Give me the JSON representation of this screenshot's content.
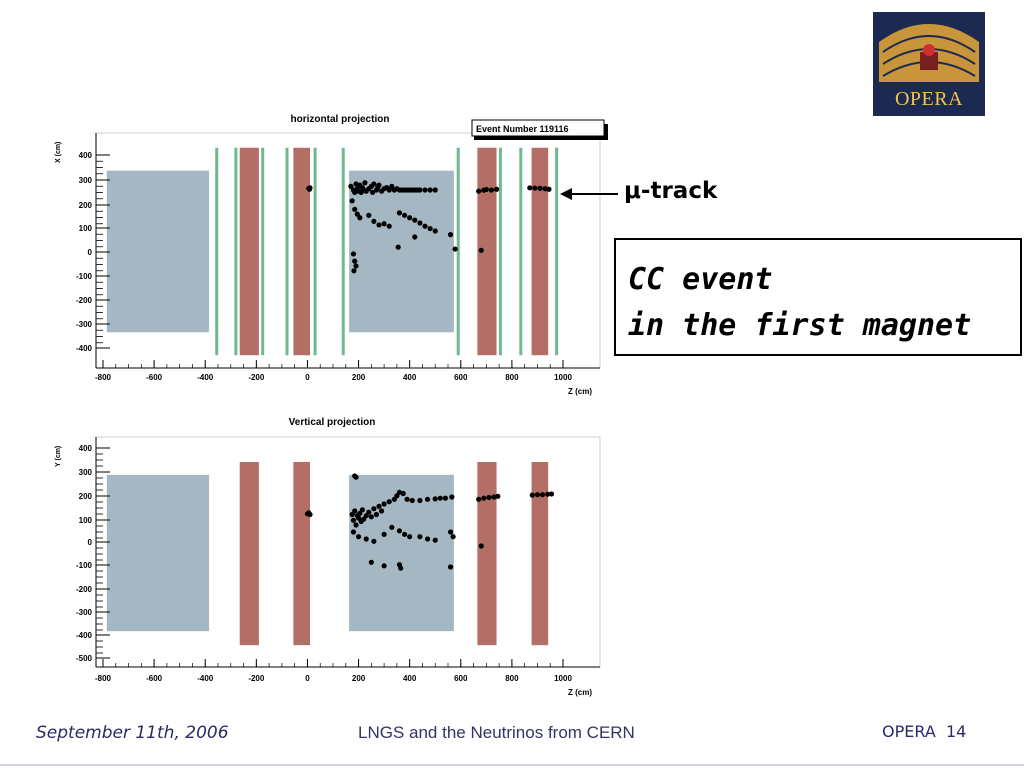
{
  "slide": {
    "logo": {
      "text": "OPERA",
      "icon": "opera-theatre-logo-icon",
      "colors": {
        "background": "#1c2a52",
        "gold": "#f2c24a"
      }
    },
    "mu_label": "μ-track",
    "cc_box": {
      "line1": "CC event",
      "line2": "in the first magnet"
    },
    "footer": {
      "date": "September 11th, 2006",
      "title": "LNGS and the Neutrinos from CERN",
      "org": "OPERA",
      "page": "14"
    }
  },
  "chart_data": [
    {
      "type": "scatter",
      "title": "horizontal projection",
      "annotation": "Event Number 119116",
      "xlabel": "Z (cm)",
      "ylabel": "X (cm)",
      "xlim": [
        -800,
        1080
      ],
      "ylim": [
        -450,
        450
      ],
      "x_ticks": [
        "-800",
        "-600",
        "-400",
        "-200",
        "0",
        "200",
        "400",
        "600",
        "800",
        "1000"
      ],
      "y_ticks": [
        "400",
        "300",
        "200",
        "100",
        "0",
        "-100",
        "-200",
        "-300",
        "-400"
      ],
      "colors": {
        "target": "#a5b7c3",
        "magnet": "#b36f65",
        "tracker": "#6fb98e"
      },
      "regions": [
        {
          "kind": "target",
          "z": [
            -785,
            -385
          ],
          "v": [
            -335,
            335
          ]
        },
        {
          "kind": "target",
          "z": [
            163,
            573
          ],
          "v": [
            -335,
            335
          ]
        },
        {
          "kind": "magnet",
          "z": [
            -265,
            -190
          ],
          "v": [
            -430,
            430
          ]
        },
        {
          "kind": "magnet",
          "z": [
            -55,
            10
          ],
          "v": [
            -430,
            430
          ]
        },
        {
          "kind": "magnet",
          "z": [
            665,
            740
          ],
          "v": [
            -430,
            430
          ]
        },
        {
          "kind": "magnet",
          "z": [
            877,
            942
          ],
          "v": [
            -430,
            430
          ]
        }
      ],
      "tracker_lines": [
        -355,
        -280,
        -175,
        -80,
        30,
        140,
        590,
        755,
        835,
        975
      ],
      "tracker_range": [
        -430,
        430
      ],
      "points": [
        [
          5,
          262
        ],
        [
          8,
          258
        ],
        [
          10,
          264
        ],
        [
          170,
          270
        ],
        [
          180,
          255
        ],
        [
          185,
          245
        ],
        [
          190,
          280
        ],
        [
          195,
          260
        ],
        [
          200,
          250
        ],
        [
          205,
          275
        ],
        [
          210,
          245
        ],
        [
          215,
          265
        ],
        [
          220,
          255
        ],
        [
          225,
          285
        ],
        [
          230,
          250
        ],
        [
          240,
          260
        ],
        [
          250,
          270
        ],
        [
          255,
          245
        ],
        [
          260,
          280
        ],
        [
          270,
          255
        ],
        [
          275,
          265
        ],
        [
          280,
          275
        ],
        [
          290,
          250
        ],
        [
          300,
          260
        ],
        [
          310,
          265
        ],
        [
          320,
          255
        ],
        [
          330,
          270
        ],
        [
          340,
          255
        ],
        [
          350,
          260
        ],
        [
          360,
          255
        ],
        [
          370,
          255
        ],
        [
          380,
          255
        ],
        [
          390,
          255
        ],
        [
          400,
          255
        ],
        [
          410,
          255
        ],
        [
          420,
          255
        ],
        [
          430,
          255
        ],
        [
          440,
          255
        ],
        [
          460,
          255
        ],
        [
          480,
          255
        ],
        [
          500,
          255
        ],
        [
          175,
          210
        ],
        [
          185,
          175
        ],
        [
          195,
          155
        ],
        [
          205,
          140
        ],
        [
          180,
          -10
        ],
        [
          185,
          -40
        ],
        [
          190,
          -60
        ],
        [
          182,
          -80
        ],
        [
          240,
          150
        ],
        [
          260,
          125
        ],
        [
          280,
          110
        ],
        [
          300,
          115
        ],
        [
          320,
          105
        ],
        [
          360,
          160
        ],
        [
          380,
          150
        ],
        [
          400,
          140
        ],
        [
          420,
          130
        ],
        [
          440,
          118
        ],
        [
          460,
          105
        ],
        [
          480,
          95
        ],
        [
          500,
          85
        ],
        [
          355,
          18
        ],
        [
          420,
          60
        ],
        [
          560,
          70
        ],
        [
          578,
          10
        ],
        [
          670,
          250
        ],
        [
          690,
          254
        ],
        [
          700,
          257
        ],
        [
          720,
          255
        ],
        [
          740,
          258
        ],
        [
          870,
          264
        ],
        [
          890,
          263
        ],
        [
          910,
          262
        ],
        [
          930,
          260
        ],
        [
          945,
          258
        ],
        [
          680,
          5
        ]
      ]
    },
    {
      "type": "scatter",
      "title": "Vertical projection",
      "xlabel": "Z (cm)",
      "ylabel": "Y (cm)",
      "xlim": [
        -800,
        1080
      ],
      "ylim": [
        -530,
        450
      ],
      "x_ticks": [
        "-800",
        "-600",
        "-400",
        "-200",
        "0",
        "200",
        "400",
        "600",
        "800",
        "1000"
      ],
      "y_ticks": [
        "400",
        "300",
        "200",
        "100",
        "0",
        "-100",
        "-200",
        "-300",
        "-400",
        "-500"
      ],
      "colors": {
        "target": "#a5b7c3",
        "magnet": "#b36f65"
      },
      "regions": [
        {
          "kind": "target",
          "z": [
            -785,
            -385
          ],
          "v": [
            -385,
            285
          ]
        },
        {
          "kind": "target",
          "z": [
            163,
            573
          ],
          "v": [
            -385,
            285
          ]
        },
        {
          "kind": "magnet",
          "z": [
            -265,
            -190
          ],
          "v": [
            -445,
            340
          ]
        },
        {
          "kind": "magnet",
          "z": [
            -55,
            10
          ],
          "v": [
            -445,
            340
          ]
        },
        {
          "kind": "magnet",
          "z": [
            665,
            740
          ],
          "v": [
            -445,
            340
          ]
        },
        {
          "kind": "magnet",
          "z": [
            877,
            942
          ],
          "v": [
            -445,
            340
          ]
        }
      ],
      "tracker_lines": [],
      "tracker_range": [
        0,
        0
      ],
      "points": [
        [
          0,
          118
        ],
        [
          5,
          122
        ],
        [
          10,
          115
        ],
        [
          185,
          280
        ],
        [
          190,
          275
        ],
        [
          175,
          115
        ],
        [
          180,
          90
        ],
        [
          185,
          130
        ],
        [
          190,
          70
        ],
        [
          195,
          110
        ],
        [
          200,
          100
        ],
        [
          205,
          120
        ],
        [
          210,
          85
        ],
        [
          215,
          135
        ],
        [
          220,
          95
        ],
        [
          230,
          110
        ],
        [
          240,
          125
        ],
        [
          250,
          105
        ],
        [
          260,
          140
        ],
        [
          270,
          115
        ],
        [
          280,
          150
        ],
        [
          290,
          130
        ],
        [
          300,
          160
        ],
        [
          320,
          170
        ],
        [
          340,
          180
        ],
        [
          350,
          195
        ],
        [
          360,
          210
        ],
        [
          375,
          205
        ],
        [
          390,
          180
        ],
        [
          410,
          175
        ],
        [
          440,
          175
        ],
        [
          470,
          180
        ],
        [
          500,
          182
        ],
        [
          520,
          185
        ],
        [
          540,
          185
        ],
        [
          565,
          190
        ],
        [
          180,
          40
        ],
        [
          200,
          20
        ],
        [
          230,
          10
        ],
        [
          260,
          0
        ],
        [
          300,
          30
        ],
        [
          330,
          60
        ],
        [
          360,
          45
        ],
        [
          380,
          30
        ],
        [
          400,
          20
        ],
        [
          440,
          20
        ],
        [
          470,
          10
        ],
        [
          500,
          5
        ],
        [
          250,
          -90
        ],
        [
          300,
          -105
        ],
        [
          360,
          -100
        ],
        [
          365,
          -115
        ],
        [
          560,
          -110
        ],
        [
          570,
          20
        ],
        [
          560,
          40
        ],
        [
          670,
          180
        ],
        [
          690,
          185
        ],
        [
          710,
          188
        ],
        [
          730,
          190
        ],
        [
          745,
          193
        ],
        [
          880,
          198
        ],
        [
          900,
          200
        ],
        [
          920,
          200
        ],
        [
          940,
          202
        ],
        [
          955,
          203
        ],
        [
          680,
          -20
        ]
      ]
    }
  ]
}
